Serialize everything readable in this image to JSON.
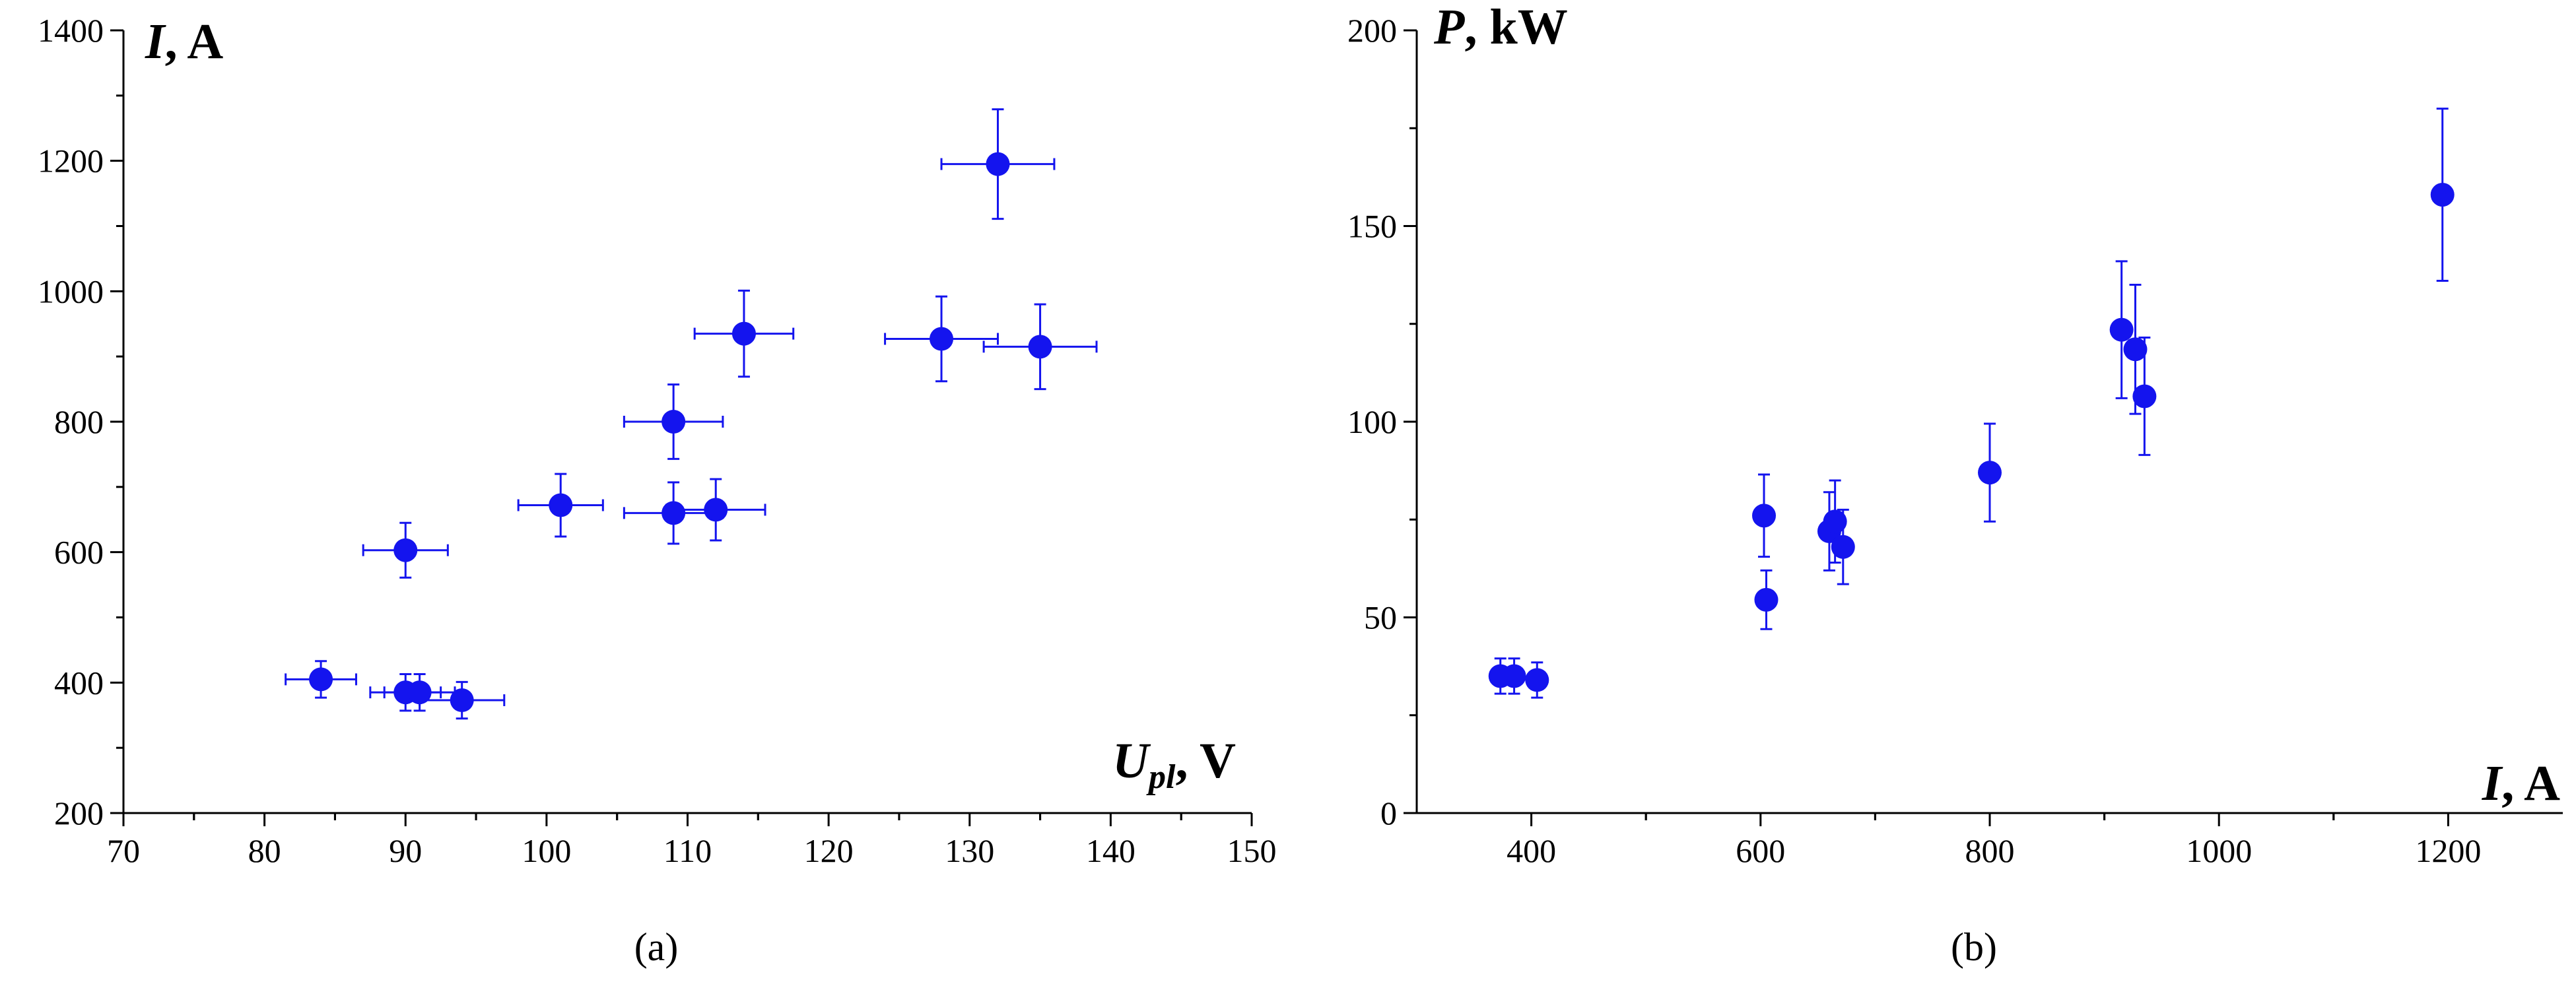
{
  "chart_data": [
    {
      "type": "scatter",
      "panel_label": "(a)",
      "ylabel": {
        "symbol": "I",
        "unit": ", A"
      },
      "xlabel": {
        "symbol": "U",
        "subscript": "pl",
        "unit": ", V"
      },
      "xlim": [
        70,
        150
      ],
      "ylim": [
        200,
        1400
      ],
      "x_ticks": [
        70,
        80,
        90,
        100,
        110,
        120,
        130,
        140,
        150
      ],
      "y_ticks": [
        200,
        400,
        600,
        800,
        1000,
        1200,
        1400
      ],
      "x_tick_labels": [
        "70",
        "80",
        "90",
        "100",
        "110",
        "120",
        "130",
        "140",
        "150"
      ],
      "y_tick_labels": [
        "200",
        "400",
        "600",
        "800",
        "1000",
        "1200",
        "1400"
      ],
      "marker_color": "#1414EE",
      "points": [
        {
          "x": 84,
          "y": 405,
          "xerr": 2.5,
          "yerr": 28
        },
        {
          "x": 90,
          "y": 385,
          "xerr": 2.5,
          "yerr": 28
        },
        {
          "x": 91,
          "y": 385,
          "xerr": 2.5,
          "yerr": 28
        },
        {
          "x": 94,
          "y": 373,
          "xerr": 3,
          "yerr": 28
        },
        {
          "x": 90,
          "y": 603,
          "xerr": 3,
          "yerr": 42
        },
        {
          "x": 101,
          "y": 672,
          "xerr": 3,
          "yerr": 48
        },
        {
          "x": 109,
          "y": 660,
          "xerr": 3.5,
          "yerr": 47
        },
        {
          "x": 112,
          "y": 665,
          "xerr": 3.5,
          "yerr": 47
        },
        {
          "x": 109,
          "y": 800,
          "xerr": 3.5,
          "yerr": 57
        },
        {
          "x": 114,
          "y": 935,
          "xerr": 3.5,
          "yerr": 66
        },
        {
          "x": 128,
          "y": 927,
          "xerr": 4,
          "yerr": 65
        },
        {
          "x": 135,
          "y": 915,
          "xerr": 4,
          "yerr": 65
        },
        {
          "x": 132,
          "y": 1195,
          "xerr": 4,
          "yerr": 84
        }
      ]
    },
    {
      "type": "scatter",
      "panel_label": "(b)",
      "ylabel": {
        "symbol": "P",
        "unit": ", kW"
      },
      "xlabel": {
        "symbol": "I",
        "unit": ", A"
      },
      "xlim": [
        300,
        1300
      ],
      "ylim": [
        0,
        200
      ],
      "x_ticks": [
        400,
        600,
        800,
        1000,
        1200
      ],
      "y_ticks": [
        0,
        50,
        100,
        150,
        200
      ],
      "x_tick_labels": [
        "400",
        "600",
        "800",
        "1000",
        "1200"
      ],
      "y_tick_labels": [
        "0",
        "50",
        "100",
        "150",
        "200"
      ],
      "marker_color": "#1414EE",
      "points": [
        {
          "x": 373,
          "y": 35,
          "yerr": 4.5
        },
        {
          "x": 385,
          "y": 35,
          "yerr": 4.5
        },
        {
          "x": 405,
          "y": 34,
          "yerr": 4.5
        },
        {
          "x": 603,
          "y": 76,
          "yerr": 10.5
        },
        {
          "x": 605,
          "y": 54.5,
          "yerr": 7.5
        },
        {
          "x": 660,
          "y": 72,
          "yerr": 10
        },
        {
          "x": 665,
          "y": 74.5,
          "yerr": 10.5
        },
        {
          "x": 672,
          "y": 68,
          "yerr": 9.5
        },
        {
          "x": 800,
          "y": 87,
          "yerr": 12.5
        },
        {
          "x": 915,
          "y": 123.5,
          "yerr": 17.5
        },
        {
          "x": 927,
          "y": 118.5,
          "yerr": 16.5
        },
        {
          "x": 935,
          "y": 106.5,
          "yerr": 15
        },
        {
          "x": 1195,
          "y": 158,
          "yerr": 22
        }
      ]
    }
  ]
}
